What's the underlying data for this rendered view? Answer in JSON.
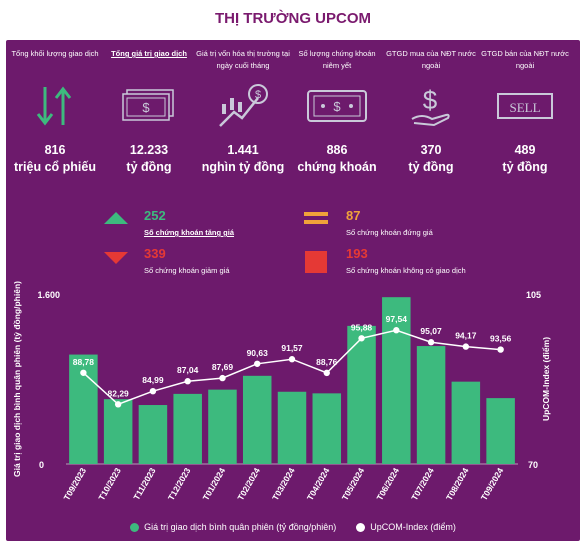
{
  "title": "THỊ TRƯỜNG UPCOM",
  "stats": [
    {
      "label": "Tổng khối lượng giao dịch",
      "value": "816",
      "unit": "triệu cổ phiếu",
      "icon": "up-down-arrows-icon",
      "bold": false
    },
    {
      "label": "Tổng giá trị giao dịch",
      "value": "12.233",
      "unit": "tỷ đồng",
      "icon": "banknotes-icon",
      "bold": true
    },
    {
      "label": "Giá trị vốn hóa thị trường tại ngày cuối tháng",
      "value": "1.441",
      "unit": "nghìn tỷ đồng",
      "icon": "candlestick-growth-icon",
      "bold": false
    },
    {
      "label": "Số lượng chứng khoán niêm yết",
      "value": "886",
      "unit": "chứng khoán",
      "icon": "banknote-icon",
      "bold": false
    },
    {
      "label": "GTGD mua của NĐT nước ngoài",
      "value": "370",
      "unit": "tỷ đồng",
      "icon": "dollar-hand-icon",
      "bold": false
    },
    {
      "label": "GTGD bán của NĐT nước ngoài",
      "value": "489",
      "unit": "tỷ đồng",
      "icon": "sell-sign-icon",
      "bold": false
    }
  ],
  "market": {
    "up": {
      "value": "252",
      "label": "Số chứng khoán tăng giá",
      "color": "#3dba7e"
    },
    "flat": {
      "value": "87",
      "label": "Số chứng khoán đứng giá",
      "color": "#f0a23a"
    },
    "down": {
      "value": "339",
      "label": "Số chứng khoán giảm giá",
      "color": "#e53935"
    },
    "none": {
      "value": "193",
      "label": "Số chứng khoán không có giao dịch",
      "color": "#e53935"
    }
  },
  "legend": {
    "bars": "Giá trị giao dịch bình quân phiên (tỷ đồng/phiên)",
    "line": "UpCOM-Index (điểm)"
  },
  "chart_data": {
    "type": "bar",
    "categories": [
      "T09/2023",
      "T10/2023",
      "T11/2023",
      "T12/2023",
      "T01/2024",
      "T02/2024",
      "T03/2024",
      "T04/2024",
      "T05/2024",
      "T06/2024",
      "T07/2024",
      "T08/2024",
      "T09/2024"
    ],
    "series": [
      {
        "name": "Giá trị giao dịch bình quân phiên (tỷ đồng/phiên)",
        "type": "bar",
        "axis": "left",
        "values": [
          1030,
          610,
          555,
          660,
          700,
          830,
          680,
          665,
          1300,
          1570,
          1110,
          775,
          620
        ]
      },
      {
        "name": "UpCOM-Index (điểm)",
        "type": "line",
        "axis": "right",
        "values": [
          88.78,
          82.29,
          84.99,
          87.04,
          87.69,
          90.63,
          91.57,
          88.76,
          95.88,
          97.54,
          95.07,
          94.17,
          93.56
        ]
      }
    ],
    "left_tick_labels": [
      "1.600",
      "0"
    ],
    "right_tick_labels": [
      "105",
      "70"
    ],
    "ylim_left": [
      0,
      1600
    ],
    "ylim_right": [
      70,
      105
    ],
    "ylabel_left": "Giá trị giao dịch bình quân phiên (tỷ đồng/phiên)",
    "ylabel_right": "UpCOM-Index (điểm)",
    "bar_color": "#3dba7e",
    "line_color": "#ffffff"
  }
}
